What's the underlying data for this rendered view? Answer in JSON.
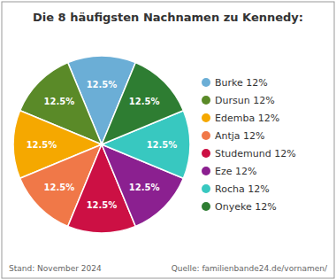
{
  "chart_data": {
    "type": "pie",
    "title": "Die 8 häufigsten Nachnamen zu Kennedy:",
    "categories": [
      "Burke 12%",
      "Dursun 12%",
      "Edemba 12%",
      "Antja 12%",
      "Studemund 12%",
      "Eze 12%",
      "Rocha 12%",
      "Onyeke 12%"
    ],
    "values": [
      12.5,
      12.5,
      12.5,
      12.5,
      12.5,
      12.5,
      12.5,
      12.5
    ],
    "value_labels": [
      "12.5%",
      "12.5%",
      "12.5%",
      "12.5%",
      "12.5%",
      "12.5%",
      "12.5%",
      "12.5%"
    ],
    "colors": [
      "#6baed6",
      "#5a8a28",
      "#f5a800",
      "#f07848",
      "#cc1044",
      "#8b2090",
      "#38c8c0",
      "#2e7d32"
    ],
    "data_labels": true,
    "legend": "right",
    "annotations": [
      "Stand: November 2024",
      "Quelle: familienbande24.de/vornamen/"
    ]
  }
}
